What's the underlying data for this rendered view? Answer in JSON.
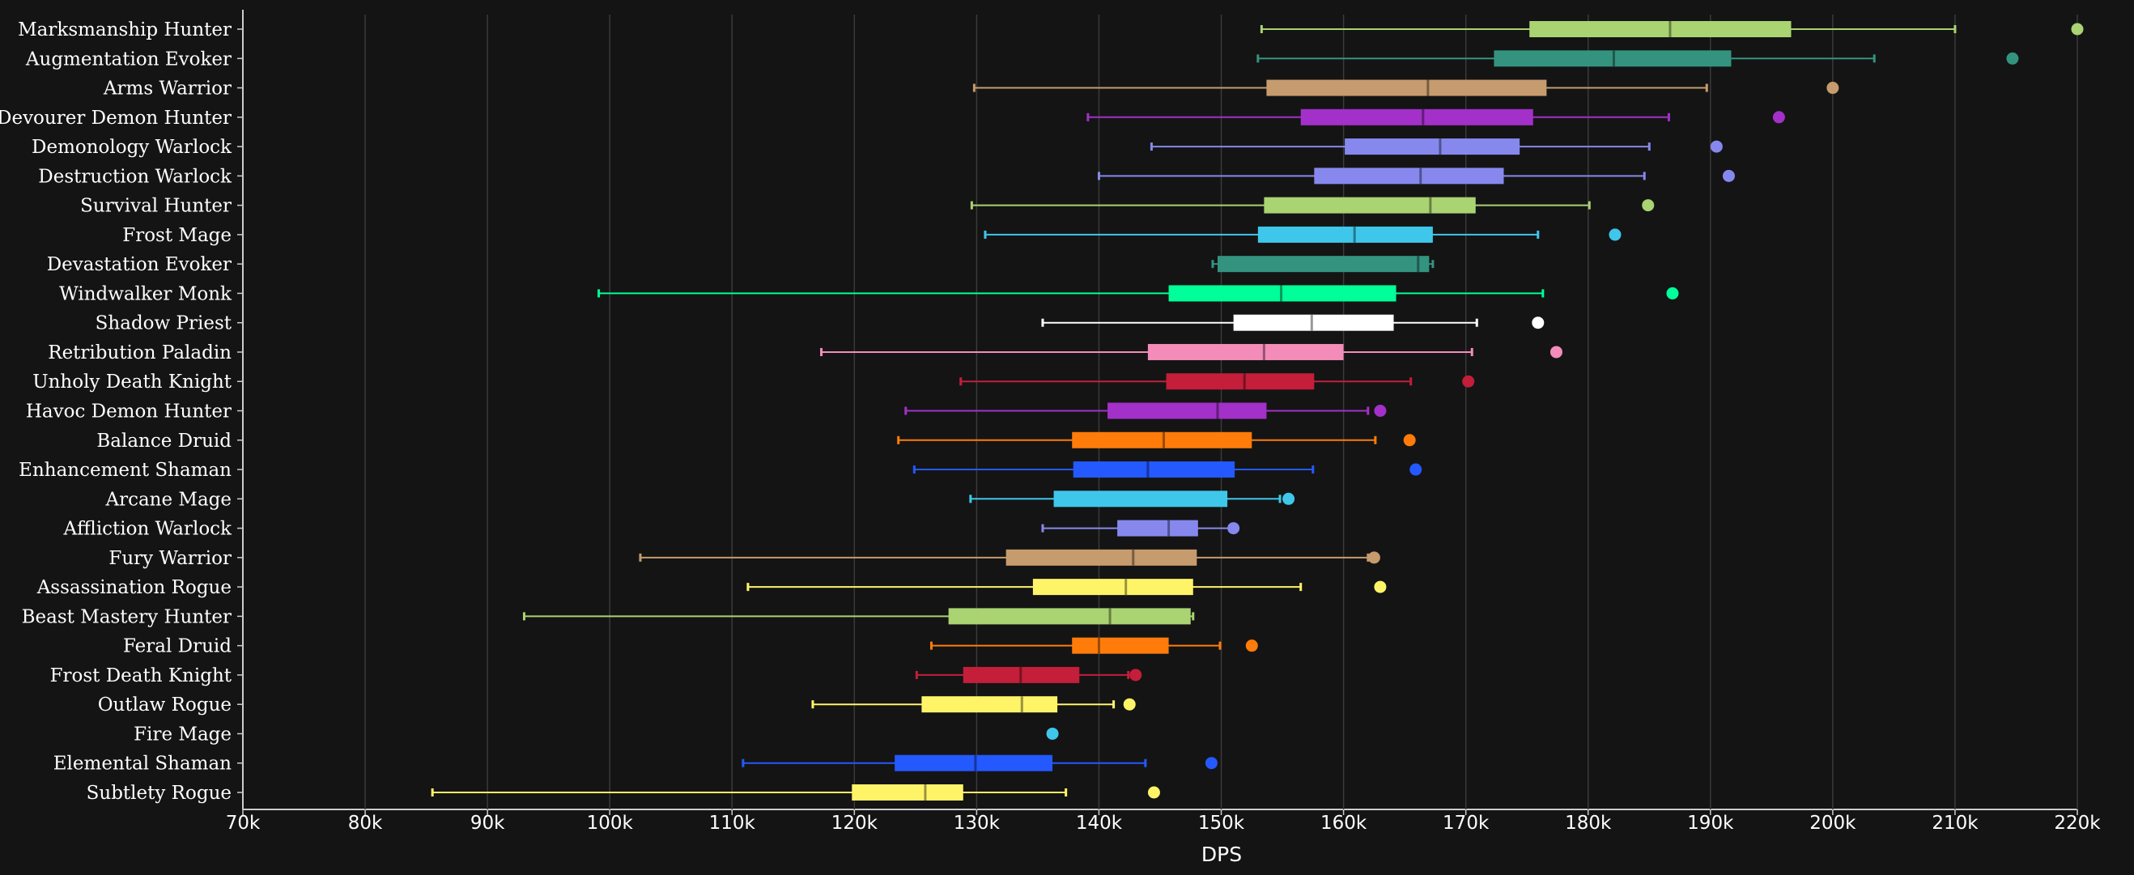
{
  "chart_data": {
    "type": "boxplot",
    "orientation": "horizontal",
    "xlabel": "DPS",
    "xlim": [
      70000,
      220000
    ],
    "x_ticks": [
      70000,
      80000,
      90000,
      100000,
      110000,
      120000,
      130000,
      140000,
      150000,
      160000,
      170000,
      180000,
      190000,
      200000,
      210000,
      220000
    ],
    "x_tick_labels": [
      "70k",
      "80k",
      "90k",
      "100k",
      "110k",
      "120k",
      "130k",
      "140k",
      "150k",
      "160k",
      "170k",
      "180k",
      "190k",
      "200k",
      "210k",
      "220k"
    ],
    "grid": "vertical",
    "series": [
      {
        "name": "Marksmanship Hunter",
        "color": "#aad372",
        "whisker_low": 153300,
        "q1": 175200,
        "median": 186700,
        "q3": 196600,
        "whisker_high": 210000,
        "outlier": 220000
      },
      {
        "name": "Augmentation Evoker",
        "color": "#33937f",
        "whisker_low": 153000,
        "q1": 172300,
        "median": 182100,
        "q3": 191700,
        "whisker_high": 203400,
        "outlier": 214700
      },
      {
        "name": "Arms Warrior",
        "color": "#c69b6d",
        "whisker_low": 129800,
        "q1": 153700,
        "median": 166900,
        "q3": 176600,
        "whisker_high": 189700,
        "outlier": 200000
      },
      {
        "name": "Devourer Demon Hunter",
        "color": "#a330c9",
        "whisker_low": 139100,
        "q1": 156500,
        "median": 166500,
        "q3": 175500,
        "whisker_high": 186600,
        "outlier": 195600
      },
      {
        "name": "Demonology Warlock",
        "color": "#8788ee",
        "whisker_low": 144300,
        "q1": 160100,
        "median": 167900,
        "q3": 174400,
        "whisker_high": 185000,
        "outlier": 190500
      },
      {
        "name": "Destruction Warlock",
        "color": "#8788ee",
        "whisker_low": 140000,
        "q1": 157600,
        "median": 166300,
        "q3": 173100,
        "whisker_high": 184600,
        "outlier": 191500
      },
      {
        "name": "Survival Hunter",
        "color": "#aad372",
        "whisker_low": 129600,
        "q1": 153500,
        "median": 167100,
        "q3": 170800,
        "whisker_high": 180100,
        "outlier": 184900
      },
      {
        "name": "Frost Mage",
        "color": "#3fc7eb",
        "whisker_low": 130700,
        "q1": 153000,
        "median": 160900,
        "q3": 167300,
        "whisker_high": 175900,
        "outlier": 182200
      },
      {
        "name": "Devastation Evoker",
        "color": "#33937f",
        "whisker_low": 149300,
        "q1": 149700,
        "median": 166100,
        "q3": 167000,
        "whisker_high": 167300,
        "outlier": null
      },
      {
        "name": "Windwalker Monk",
        "color": "#00ff98",
        "whisker_low": 99100,
        "q1": 145700,
        "median": 154900,
        "q3": 164300,
        "whisker_high": 176300,
        "outlier": 186900
      },
      {
        "name": "Shadow Priest",
        "color": "#ffffff",
        "whisker_low": 135400,
        "q1": 151000,
        "median": 157400,
        "q3": 164100,
        "whisker_high": 170900,
        "outlier": 175900
      },
      {
        "name": "Retribution Paladin",
        "color": "#f48cba",
        "whisker_low": 117300,
        "q1": 144000,
        "median": 153500,
        "q3": 160000,
        "whisker_high": 170500,
        "outlier": 177400
      },
      {
        "name": "Unholy Death Knight",
        "color": "#c41e3a",
        "whisker_low": 128700,
        "q1": 145500,
        "median": 151900,
        "q3": 157600,
        "whisker_high": 165500,
        "outlier": 170200
      },
      {
        "name": "Havoc Demon Hunter",
        "color": "#a330c9",
        "whisker_low": 124200,
        "q1": 140700,
        "median": 149700,
        "q3": 153700,
        "whisker_high": 162000,
        "outlier": 163000
      },
      {
        "name": "Balance Druid",
        "color": "#ff7c0a",
        "whisker_low": 123600,
        "q1": 137800,
        "median": 145300,
        "q3": 152500,
        "whisker_high": 162600,
        "outlier": 165400
      },
      {
        "name": "Enhancement Shaman",
        "color": "#2459ff",
        "whisker_low": 124900,
        "q1": 137900,
        "median": 144000,
        "q3": 151100,
        "whisker_high": 157500,
        "outlier": 165900
      },
      {
        "name": "Arcane Mage",
        "color": "#3fc7eb",
        "whisker_low": 129500,
        "q1": 136300,
        "median": null,
        "q3": 150500,
        "whisker_high": 154800,
        "outlier": 155500
      },
      {
        "name": "Affliction Warlock",
        "color": "#8788ee",
        "whisker_low": 135400,
        "q1": 141500,
        "median": 145700,
        "q3": 148100,
        "whisker_high": 150700,
        "outlier": 151000
      },
      {
        "name": "Fury Warrior",
        "color": "#c69b6d",
        "whisker_low": 102500,
        "q1": 132400,
        "median": 142800,
        "q3": 148000,
        "whisker_high": 162000,
        "outlier": 162500
      },
      {
        "name": "Assassination Rogue",
        "color": "#fff468",
        "whisker_low": 111300,
        "q1": 134600,
        "median": 142200,
        "q3": 147700,
        "whisker_high": 156500,
        "outlier": 163000
      },
      {
        "name": "Beast Mastery Hunter",
        "color": "#aad372",
        "whisker_low": 93000,
        "q1": 127700,
        "median": 140900,
        "q3": 147500,
        "whisker_high": 147700,
        "outlier": null
      },
      {
        "name": "Feral Druid",
        "color": "#ff7c0a",
        "whisker_low": 126300,
        "q1": 137800,
        "median": 140000,
        "q3": 145700,
        "whisker_high": 149900,
        "outlier": 152500
      },
      {
        "name": "Frost Death Knight",
        "color": "#c41e3a",
        "whisker_low": 125100,
        "q1": 128900,
        "median": 133600,
        "q3": 138400,
        "whisker_high": 142400,
        "outlier": 143000
      },
      {
        "name": "Outlaw Rogue",
        "color": "#fff468",
        "whisker_low": 116600,
        "q1": 125500,
        "median": 133700,
        "q3": 136600,
        "whisker_high": 141200,
        "outlier": 142500
      },
      {
        "name": "Fire Mage",
        "color": "#3fc7eb",
        "whisker_low": null,
        "q1": null,
        "median": null,
        "q3": null,
        "whisker_high": null,
        "outlier": 136200
      },
      {
        "name": "Elemental Shaman",
        "color": "#2459ff",
        "whisker_low": 110900,
        "q1": 123300,
        "median": 129900,
        "q3": 136200,
        "whisker_high": 143800,
        "outlier": 149200
      },
      {
        "name": "Subtlety Rogue",
        "color": "#fff468",
        "whisker_low": 85500,
        "q1": 119800,
        "median": 125800,
        "q3": 128900,
        "whisker_high": 137300,
        "outlier": 144500
      }
    ]
  }
}
